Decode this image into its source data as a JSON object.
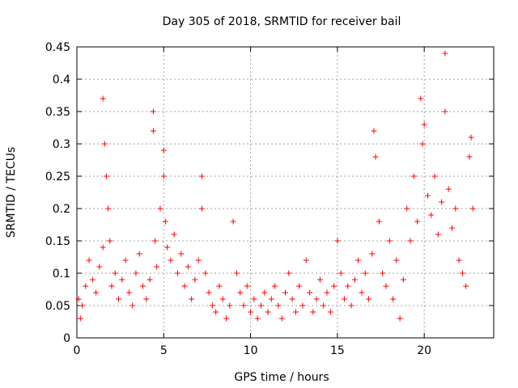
{
  "chart_data": {
    "type": "scatter",
    "title": "Day 305 of 2018, SRMTID for receiver bail",
    "xlabel": "GPS time / hours",
    "ylabel": "SRMTID / TECUs",
    "xlim": [
      0,
      24
    ],
    "ylim": [
      0,
      0.45
    ],
    "xticks": [
      0,
      5,
      10,
      15,
      20
    ],
    "xtick_labels": [
      "0",
      "5",
      "10",
      "15",
      "20"
    ],
    "yticks": [
      0,
      0.05,
      0.1,
      0.15,
      0.2,
      0.25,
      0.3,
      0.35,
      0.4,
      0.45
    ],
    "ytick_labels": [
      "0",
      "0.05",
      "0.1",
      "0.15",
      "0.2",
      "0.25",
      "0.3",
      "0.35",
      "0.4",
      "0.45"
    ],
    "grid": true,
    "marker": "+",
    "color": "#ff0000",
    "series": [
      {
        "name": "SRMTID",
        "x": [
          0.1,
          0.2,
          0.3,
          0.5,
          0.7,
          0.9,
          1.1,
          1.3,
          1.5,
          1.5,
          1.6,
          1.7,
          1.8,
          1.9,
          2.0,
          2.2,
          2.4,
          2.6,
          2.8,
          3.0,
          3.2,
          3.4,
          3.6,
          3.8,
          4.0,
          4.2,
          4.4,
          4.4,
          4.5,
          4.6,
          4.8,
          5.0,
          5.0,
          5.1,
          5.2,
          5.4,
          5.6,
          5.8,
          6.0,
          6.2,
          6.4,
          6.6,
          6.8,
          7.0,
          7.2,
          7.2,
          7.4,
          7.6,
          7.8,
          8.0,
          8.2,
          8.4,
          8.6,
          8.8,
          9.0,
          9.2,
          9.4,
          9.6,
          9.8,
          10.0,
          10.2,
          10.4,
          10.6,
          10.8,
          11.0,
          11.2,
          11.4,
          11.6,
          11.8,
          12.0,
          12.2,
          12.4,
          12.6,
          12.8,
          13.0,
          13.2,
          13.4,
          13.6,
          13.8,
          14.0,
          14.2,
          14.4,
          14.6,
          14.8,
          15.0,
          15.2,
          15.4,
          15.6,
          15.8,
          16.0,
          16.2,
          16.4,
          16.6,
          16.8,
          17.0,
          17.1,
          17.2,
          17.4,
          17.6,
          17.8,
          18.0,
          18.2,
          18.4,
          18.6,
          18.8,
          19.0,
          19.2,
          19.4,
          19.6,
          19.8,
          19.9,
          20.0,
          20.2,
          20.4,
          20.6,
          20.8,
          21.0,
          21.2,
          21.2,
          21.4,
          21.6,
          21.8,
          22.0,
          22.2,
          22.4,
          22.6,
          22.7,
          22.8
        ],
        "y": [
          0.06,
          0.03,
          0.05,
          0.08,
          0.12,
          0.09,
          0.07,
          0.11,
          0.14,
          0.37,
          0.3,
          0.25,
          0.2,
          0.15,
          0.08,
          0.1,
          0.06,
          0.09,
          0.12,
          0.07,
          0.05,
          0.1,
          0.13,
          0.08,
          0.06,
          0.09,
          0.35,
          0.32,
          0.15,
          0.11,
          0.2,
          0.29,
          0.25,
          0.18,
          0.14,
          0.12,
          0.16,
          0.1,
          0.13,
          0.08,
          0.11,
          0.06,
          0.09,
          0.12,
          0.25,
          0.2,
          0.1,
          0.07,
          0.05,
          0.04,
          0.08,
          0.06,
          0.03,
          0.05,
          0.18,
          0.1,
          0.07,
          0.05,
          0.08,
          0.04,
          0.06,
          0.03,
          0.05,
          0.07,
          0.04,
          0.06,
          0.08,
          0.05,
          0.03,
          0.07,
          0.1,
          0.06,
          0.04,
          0.08,
          0.05,
          0.12,
          0.07,
          0.04,
          0.06,
          0.09,
          0.05,
          0.07,
          0.04,
          0.08,
          0.15,
          0.1,
          0.06,
          0.08,
          0.05,
          0.09,
          0.12,
          0.07,
          0.1,
          0.06,
          0.13,
          0.32,
          0.28,
          0.18,
          0.1,
          0.08,
          0.15,
          0.06,
          0.12,
          0.03,
          0.09,
          0.2,
          0.15,
          0.25,
          0.18,
          0.37,
          0.3,
          0.33,
          0.22,
          0.19,
          0.25,
          0.16,
          0.21,
          0.44,
          0.35,
          0.23,
          0.17,
          0.2,
          0.12,
          0.1,
          0.08,
          0.28,
          0.31,
          0.2
        ]
      }
    ]
  }
}
